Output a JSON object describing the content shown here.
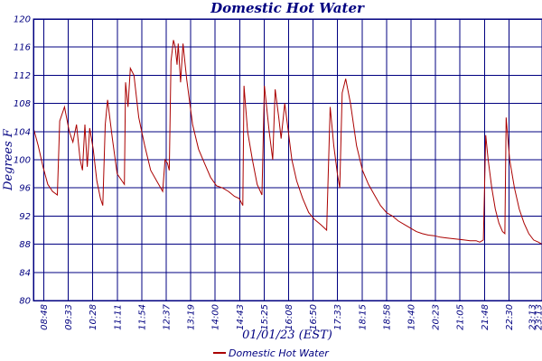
{
  "chart_data": {
    "type": "line",
    "title": "Domestic Hot Water",
    "xlabel": "01/01/23 (EST)",
    "ylabel": "Degrees F",
    "ylim": [
      80,
      120
    ],
    "y_ticks": [
      "80",
      "84",
      "88",
      "92",
      "96",
      "100",
      "104",
      "108",
      "112",
      "116",
      "120"
    ],
    "x_ticks": [
      "08:48",
      "09:33",
      "10:28",
      "11:11",
      "11:54",
      "12:37",
      "13:19",
      "14:00",
      "14:43",
      "15:25",
      "16:08",
      "16:50",
      "17:33",
      "18:15",
      "18:58",
      "19:40",
      "20:23",
      "21:05",
      "21:48",
      "22:30",
      "23:13",
      "23:13"
    ],
    "grid": true,
    "legend_position": "bottom-center",
    "colors": {
      "series": "#aa0000",
      "axes": "#000080"
    },
    "series": [
      {
        "name": "Domestic Hot Water",
        "points": [
          [
            0,
            104.5
          ],
          [
            0.4,
            102
          ],
          [
            0.8,
            99
          ],
          [
            1.2,
            96.5
          ],
          [
            1.6,
            95.5
          ],
          [
            2.0,
            95
          ],
          [
            2.2,
            105.5
          ],
          [
            2.6,
            107.5
          ],
          [
            3.0,
            104
          ],
          [
            3.3,
            102.5
          ],
          [
            3.6,
            105
          ],
          [
            3.9,
            100
          ],
          [
            4.1,
            98.5
          ],
          [
            4.3,
            105
          ],
          [
            4.5,
            99
          ],
          [
            4.7,
            104.5
          ],
          [
            5.0,
            101.5
          ],
          [
            5.3,
            97
          ],
          [
            5.6,
            94.5
          ],
          [
            5.8,
            93.5
          ],
          [
            6.0,
            105
          ],
          [
            6.2,
            108.5
          ],
          [
            6.6,
            103
          ],
          [
            7.0,
            98
          ],
          [
            7.4,
            97
          ],
          [
            7.6,
            96.5
          ],
          [
            7.7,
            111
          ],
          [
            7.9,
            107.5
          ],
          [
            8.1,
            113
          ],
          [
            8.4,
            112
          ],
          [
            8.8,
            106
          ],
          [
            9.3,
            102
          ],
          [
            9.8,
            98.5
          ],
          [
            10.3,
            97
          ],
          [
            10.8,
            95.5
          ],
          [
            11.0,
            100
          ],
          [
            11.2,
            99.5
          ],
          [
            11.35,
            98.5
          ],
          [
            11.5,
            114
          ],
          [
            11.7,
            117
          ],
          [
            11.85,
            116
          ],
          [
            12.0,
            113.5
          ],
          [
            12.1,
            116.5
          ],
          [
            12.3,
            111
          ],
          [
            12.5,
            116.5
          ],
          [
            12.8,
            111.5
          ],
          [
            13.3,
            105
          ],
          [
            13.8,
            101.5
          ],
          [
            14.3,
            99.5
          ],
          [
            14.8,
            97.5
          ],
          [
            15.3,
            96.3
          ],
          [
            15.8,
            96
          ],
          [
            16.3,
            95.5
          ],
          [
            16.8,
            94.8
          ],
          [
            17.2,
            94.5
          ],
          [
            17.5,
            93.5
          ],
          [
            17.6,
            110.5
          ],
          [
            17.9,
            104
          ],
          [
            18.3,
            100
          ],
          [
            18.7,
            96.5
          ],
          [
            19.1,
            95
          ],
          [
            19.3,
            110.5
          ],
          [
            19.7,
            104
          ],
          [
            20.0,
            100
          ],
          [
            20.2,
            110
          ],
          [
            20.5,
            106
          ],
          [
            20.7,
            103
          ],
          [
            21.0,
            108
          ],
          [
            21.3,
            104
          ],
          [
            21.6,
            100
          ],
          [
            22.0,
            97
          ],
          [
            22.5,
            94.5
          ],
          [
            23.0,
            92.5
          ],
          [
            23.5,
            91.5
          ],
          [
            24.0,
            90.8
          ],
          [
            24.5,
            90
          ],
          [
            24.8,
            107.5
          ],
          [
            25.1,
            102
          ],
          [
            25.4,
            98
          ],
          [
            25.6,
            96
          ],
          [
            25.8,
            109.5
          ],
          [
            26.1,
            111.5
          ],
          [
            26.5,
            108
          ],
          [
            27.0,
            102
          ],
          [
            27.5,
            98.5
          ],
          [
            28.0,
            96.5
          ],
          [
            28.5,
            95
          ],
          [
            29.0,
            93.5
          ],
          [
            29.5,
            92.5
          ],
          [
            30.0,
            92
          ],
          [
            30.5,
            91.3
          ],
          [
            31.0,
            90.8
          ],
          [
            31.5,
            90.3
          ],
          [
            32.0,
            89.8
          ],
          [
            32.5,
            89.5
          ],
          [
            33.0,
            89.3
          ],
          [
            33.5,
            89.2
          ],
          [
            34.0,
            89.0
          ],
          [
            34.5,
            88.9
          ],
          [
            35.0,
            88.8
          ],
          [
            35.5,
            88.7
          ],
          [
            36.0,
            88.6
          ],
          [
            36.5,
            88.5
          ],
          [
            37.0,
            88.5
          ],
          [
            37.3,
            88.3
          ],
          [
            37.6,
            88.6
          ],
          [
            37.8,
            103.5
          ],
          [
            38.0,
            100
          ],
          [
            38.3,
            96
          ],
          [
            38.6,
            93
          ],
          [
            38.9,
            91
          ],
          [
            39.2,
            89.8
          ],
          [
            39.4,
            89.5
          ],
          [
            39.5,
            106
          ],
          [
            39.8,
            100
          ],
          [
            40.2,
            96
          ],
          [
            40.6,
            93
          ],
          [
            41.0,
            91
          ],
          [
            41.4,
            89.5
          ],
          [
            41.8,
            88.6
          ],
          [
            42.2,
            88.3
          ],
          [
            42.5,
            88
          ]
        ]
      }
    ]
  }
}
